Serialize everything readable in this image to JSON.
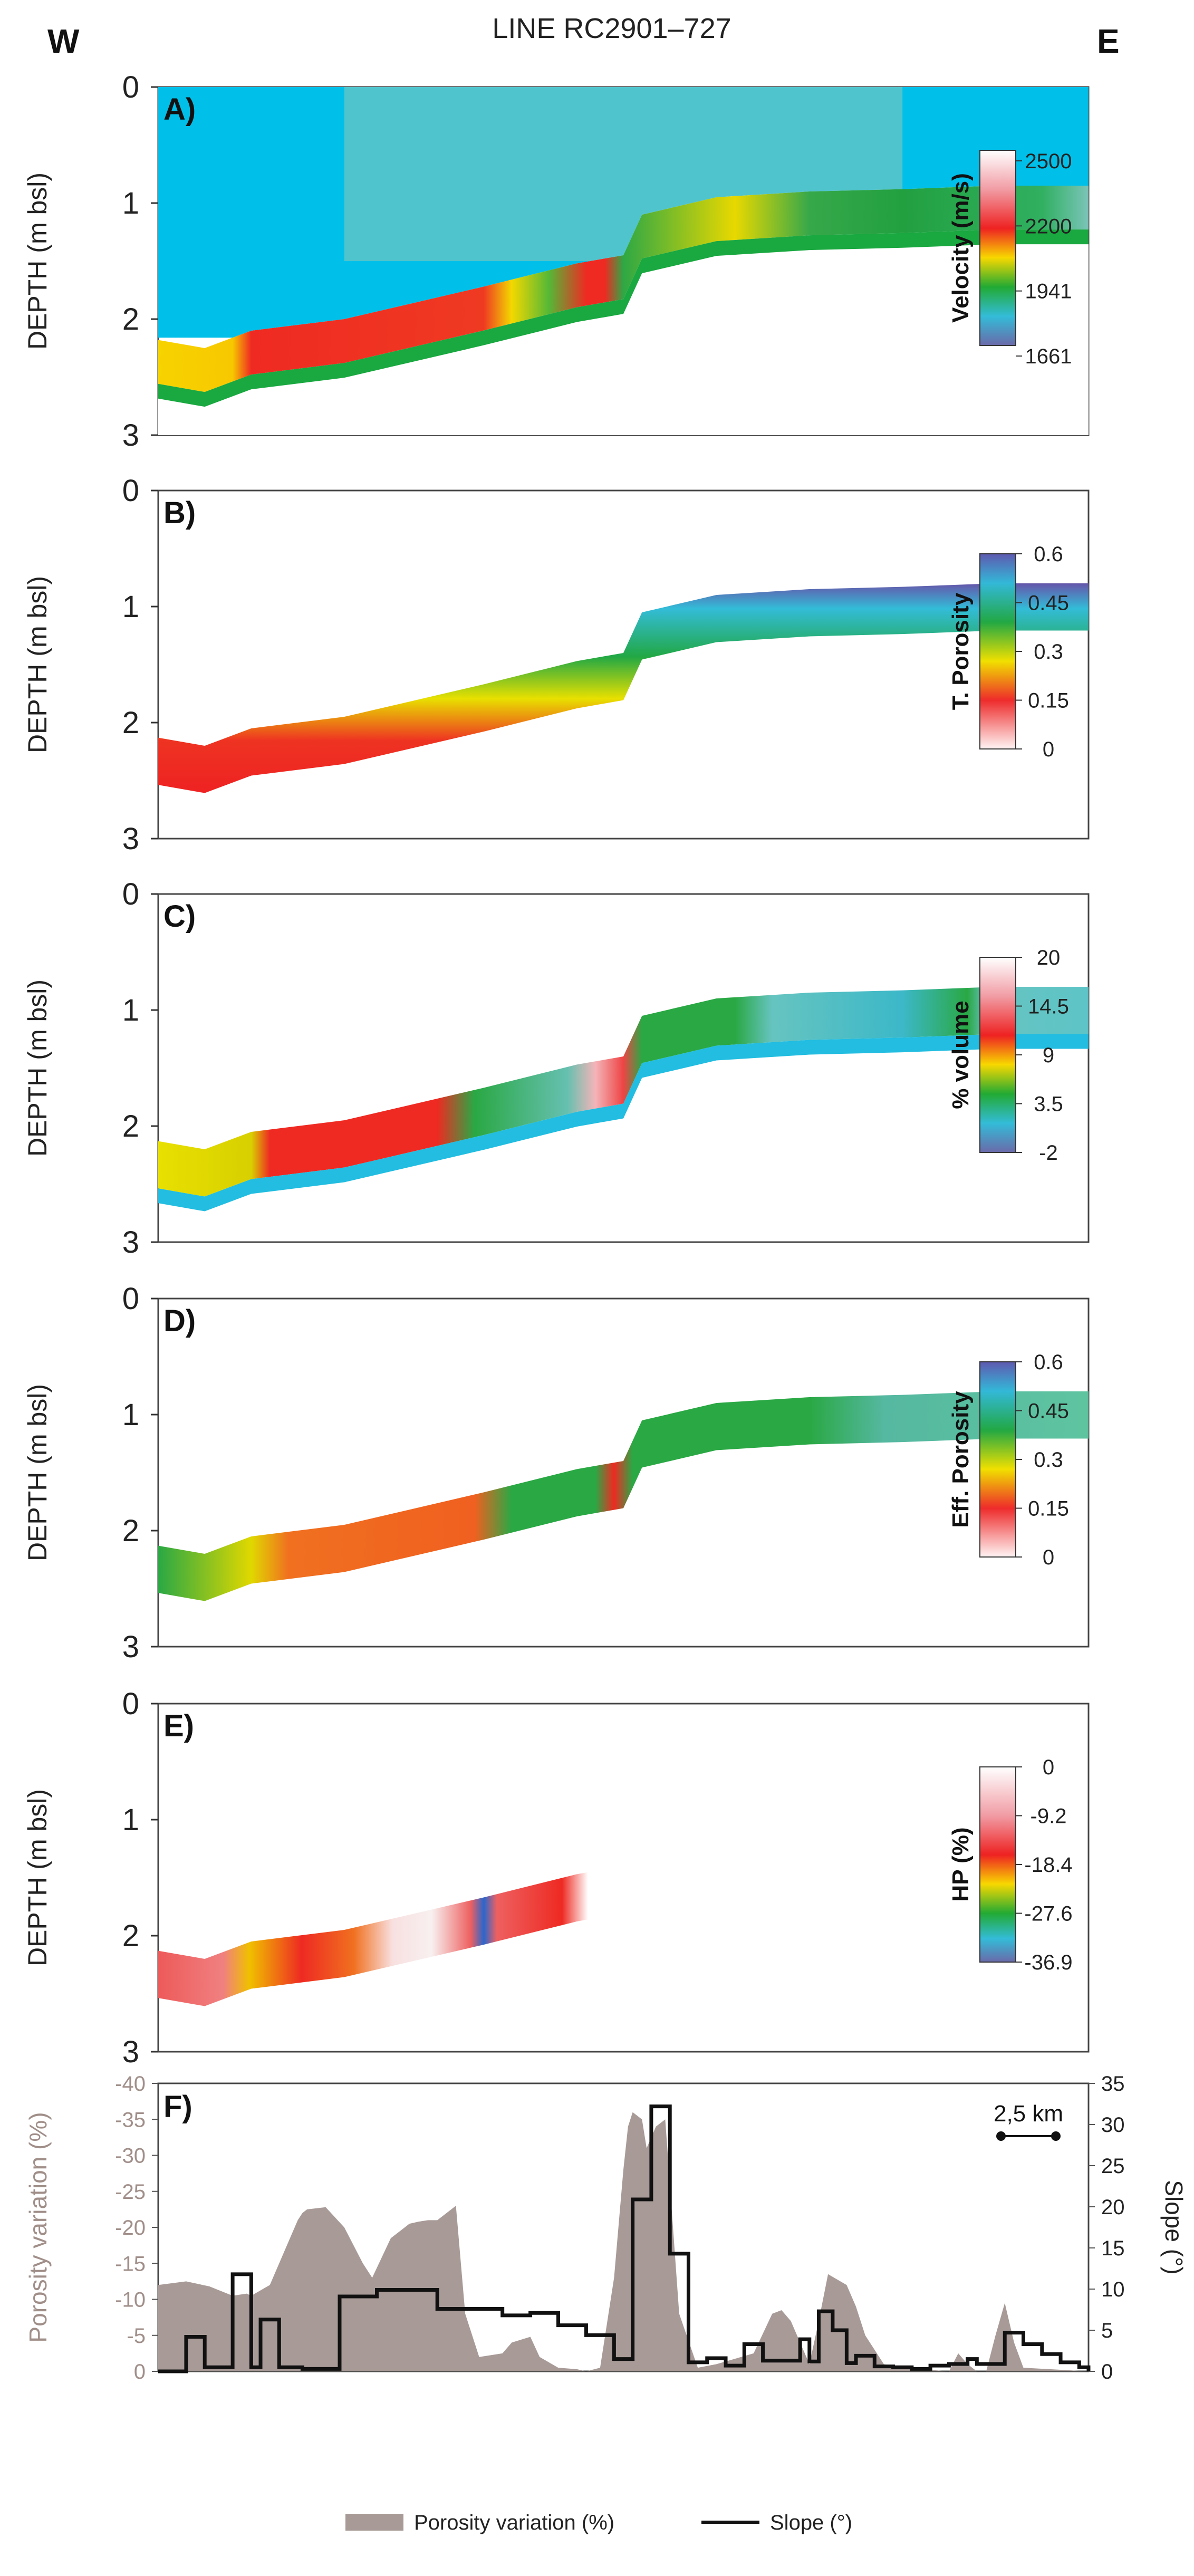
{
  "figure": {
    "title": "LINE RC2901–727",
    "west_label": "W",
    "east_label": "E",
    "depth_axis_label": "DEPTH (m bsl)",
    "depth_ticks": [
      "0",
      "1",
      "2",
      "3"
    ]
  },
  "panels": [
    {
      "id": "A",
      "label": "A)",
      "property": "velocity",
      "colorbar": {
        "title": "Velocity (m/s)",
        "ticks": [
          "2500",
          "2200",
          "1941",
          "1661"
        ]
      },
      "colors": {
        "water": "#00bfe8",
        "sediment_top": "#5ec4c7"
      }
    },
    {
      "id": "B",
      "label": "B)",
      "property": "total_porosity",
      "colorbar": {
        "title": "T. Porosity",
        "ticks": [
          "0.6",
          "0.45",
          "0.3",
          "0.15",
          "0"
        ]
      }
    },
    {
      "id": "C",
      "label": "C)",
      "property": "hydrate_volume",
      "colorbar": {
        "title": "% volume",
        "ticks": [
          "20",
          "14.5",
          "9",
          "3.5",
          "-2"
        ]
      }
    },
    {
      "id": "D",
      "label": "D)",
      "property": "effective_porosity",
      "colorbar": {
        "title": "Eff. Porosity",
        "ticks": [
          "0.6",
          "0.45",
          "0.3",
          "0.15",
          "0"
        ]
      }
    },
    {
      "id": "E",
      "label": "E)",
      "property": "hp_percent",
      "colorbar": {
        "title": "HP (%)",
        "ticks": [
          "0",
          "-9.2",
          "-18.4",
          "-27.6",
          "-36.9"
        ]
      }
    }
  ],
  "chart_data": [
    {
      "type": "heatmap",
      "title": "LINE RC2901–727 depth sections (A–E)",
      "ylabel": "DEPTH (m bsl)",
      "ylim": [
        3,
        0
      ],
      "x_normalized": [
        0,
        0.05,
        0.1,
        0.2,
        0.35,
        0.45,
        0.5,
        0.52,
        0.6,
        0.7,
        0.8,
        0.9,
        1.0
      ],
      "seafloor_depth_m": [
        2.18,
        2.25,
        2.1,
        2.0,
        1.72,
        1.52,
        1.45,
        1.1,
        0.95,
        0.9,
        0.88,
        0.85,
        0.85
      ],
      "layer_thickness_m": 0.42
    },
    {
      "type": "area",
      "title": "F)",
      "ylabel": "Porosity variation (%)",
      "ylabel_right": "Slope (°)",
      "ylim": [
        -40,
        0
      ],
      "ylim_right": [
        0,
        35
      ],
      "yticks_left": [
        "-40",
        "-35",
        "-30",
        "-25",
        "-20",
        "-15",
        "-10",
        "-5",
        "0"
      ],
      "yticks_right": [
        "35",
        "30",
        "25",
        "20",
        "15",
        "10",
        "5",
        "0"
      ],
      "scale_bar_label": "2,5 km",
      "colors": {
        "area": "#a89b97",
        "line": "#111111"
      },
      "series": [
        {
          "name": "Porosity variation (%)",
          "kind": "area",
          "x": [
            0,
            0.03,
            0.055,
            0.08,
            0.095,
            0.1,
            0.12,
            0.14,
            0.15,
            0.155,
            0.16,
            0.18,
            0.2,
            0.22,
            0.23,
            0.25,
            0.27,
            0.28,
            0.29,
            0.3,
            0.32,
            0.33,
            0.345,
            0.37,
            0.38,
            0.4,
            0.41,
            0.43,
            0.45,
            0.46,
            0.475,
            0.49,
            0.5,
            0.505,
            0.51,
            0.52,
            0.525,
            0.535,
            0.545,
            0.55,
            0.56,
            0.58,
            0.6,
            0.64,
            0.66,
            0.67,
            0.68,
            0.69,
            0.7,
            0.71,
            0.72,
            0.74,
            0.75,
            0.76,
            0.78,
            0.8,
            0.85,
            0.86,
            0.87,
            0.88,
            0.89,
            0.9,
            0.91,
            0.92,
            0.93,
            1.0
          ],
          "values": [
            -12,
            -12.5,
            -11.8,
            -10.5,
            -10.8,
            -10.5,
            -12,
            -18,
            -21,
            -22,
            -22.5,
            -22.8,
            -20,
            -15,
            -13,
            -18.5,
            -20.5,
            -20.8,
            -21,
            -21,
            -23,
            -8,
            -2,
            -2.5,
            -4,
            -4.8,
            -2,
            -0.5,
            -0.3,
            0,
            -0.5,
            -13,
            -28,
            -34,
            -36,
            -35,
            -31,
            -34,
            -35,
            -26,
            -8,
            -0.5,
            -1,
            -2.5,
            -8,
            -8.5,
            -7,
            -4,
            -1,
            -7,
            -13.5,
            -12,
            -9,
            -5,
            -1,
            -0.5,
            0,
            -2.5,
            -1,
            0,
            0,
            -5,
            -9.5,
            -4,
            -0.5,
            0
          ]
        },
        {
          "name": "Slope (°)",
          "kind": "step",
          "x": [
            0,
            0.01,
            0.03,
            0.05,
            0.08,
            0.1,
            0.11,
            0.13,
            0.155,
            0.195,
            0.235,
            0.3,
            0.37,
            0.4,
            0.43,
            0.46,
            0.49,
            0.5,
            0.51,
            0.53,
            0.55,
            0.57,
            0.59,
            0.61,
            0.63,
            0.65,
            0.67,
            0.69,
            0.7,
            0.71,
            0.725,
            0.74,
            0.75,
            0.77,
            0.79,
            0.81,
            0.83,
            0.85,
            0.87,
            0.88,
            0.9,
            0.91,
            0.93,
            0.95,
            0.97,
            0.99,
            1.0
          ],
          "values": [
            0,
            0,
            4.2,
            0.5,
            11.8,
            0.5,
            6.3,
            0.5,
            0.3,
            9.1,
            9.9,
            7.6,
            6.8,
            7.1,
            5.6,
            4.4,
            1.5,
            1.5,
            20.9,
            32.2,
            14.3,
            1.1,
            1.6,
            0.7,
            3.3,
            1.3,
            1.3,
            3.9,
            1.2,
            7.3,
            5.0,
            1.0,
            1.9,
            0.6,
            0.5,
            0.3,
            0.7,
            0.9,
            1.5,
            0.9,
            0.9,
            4.7,
            3.3,
            2.1,
            1.1,
            0.5,
            0
          ]
        }
      ],
      "legend": {
        "position": "bottom",
        "entries": [
          "Porosity variation (%)",
          "Slope (°)"
        ]
      }
    }
  ]
}
